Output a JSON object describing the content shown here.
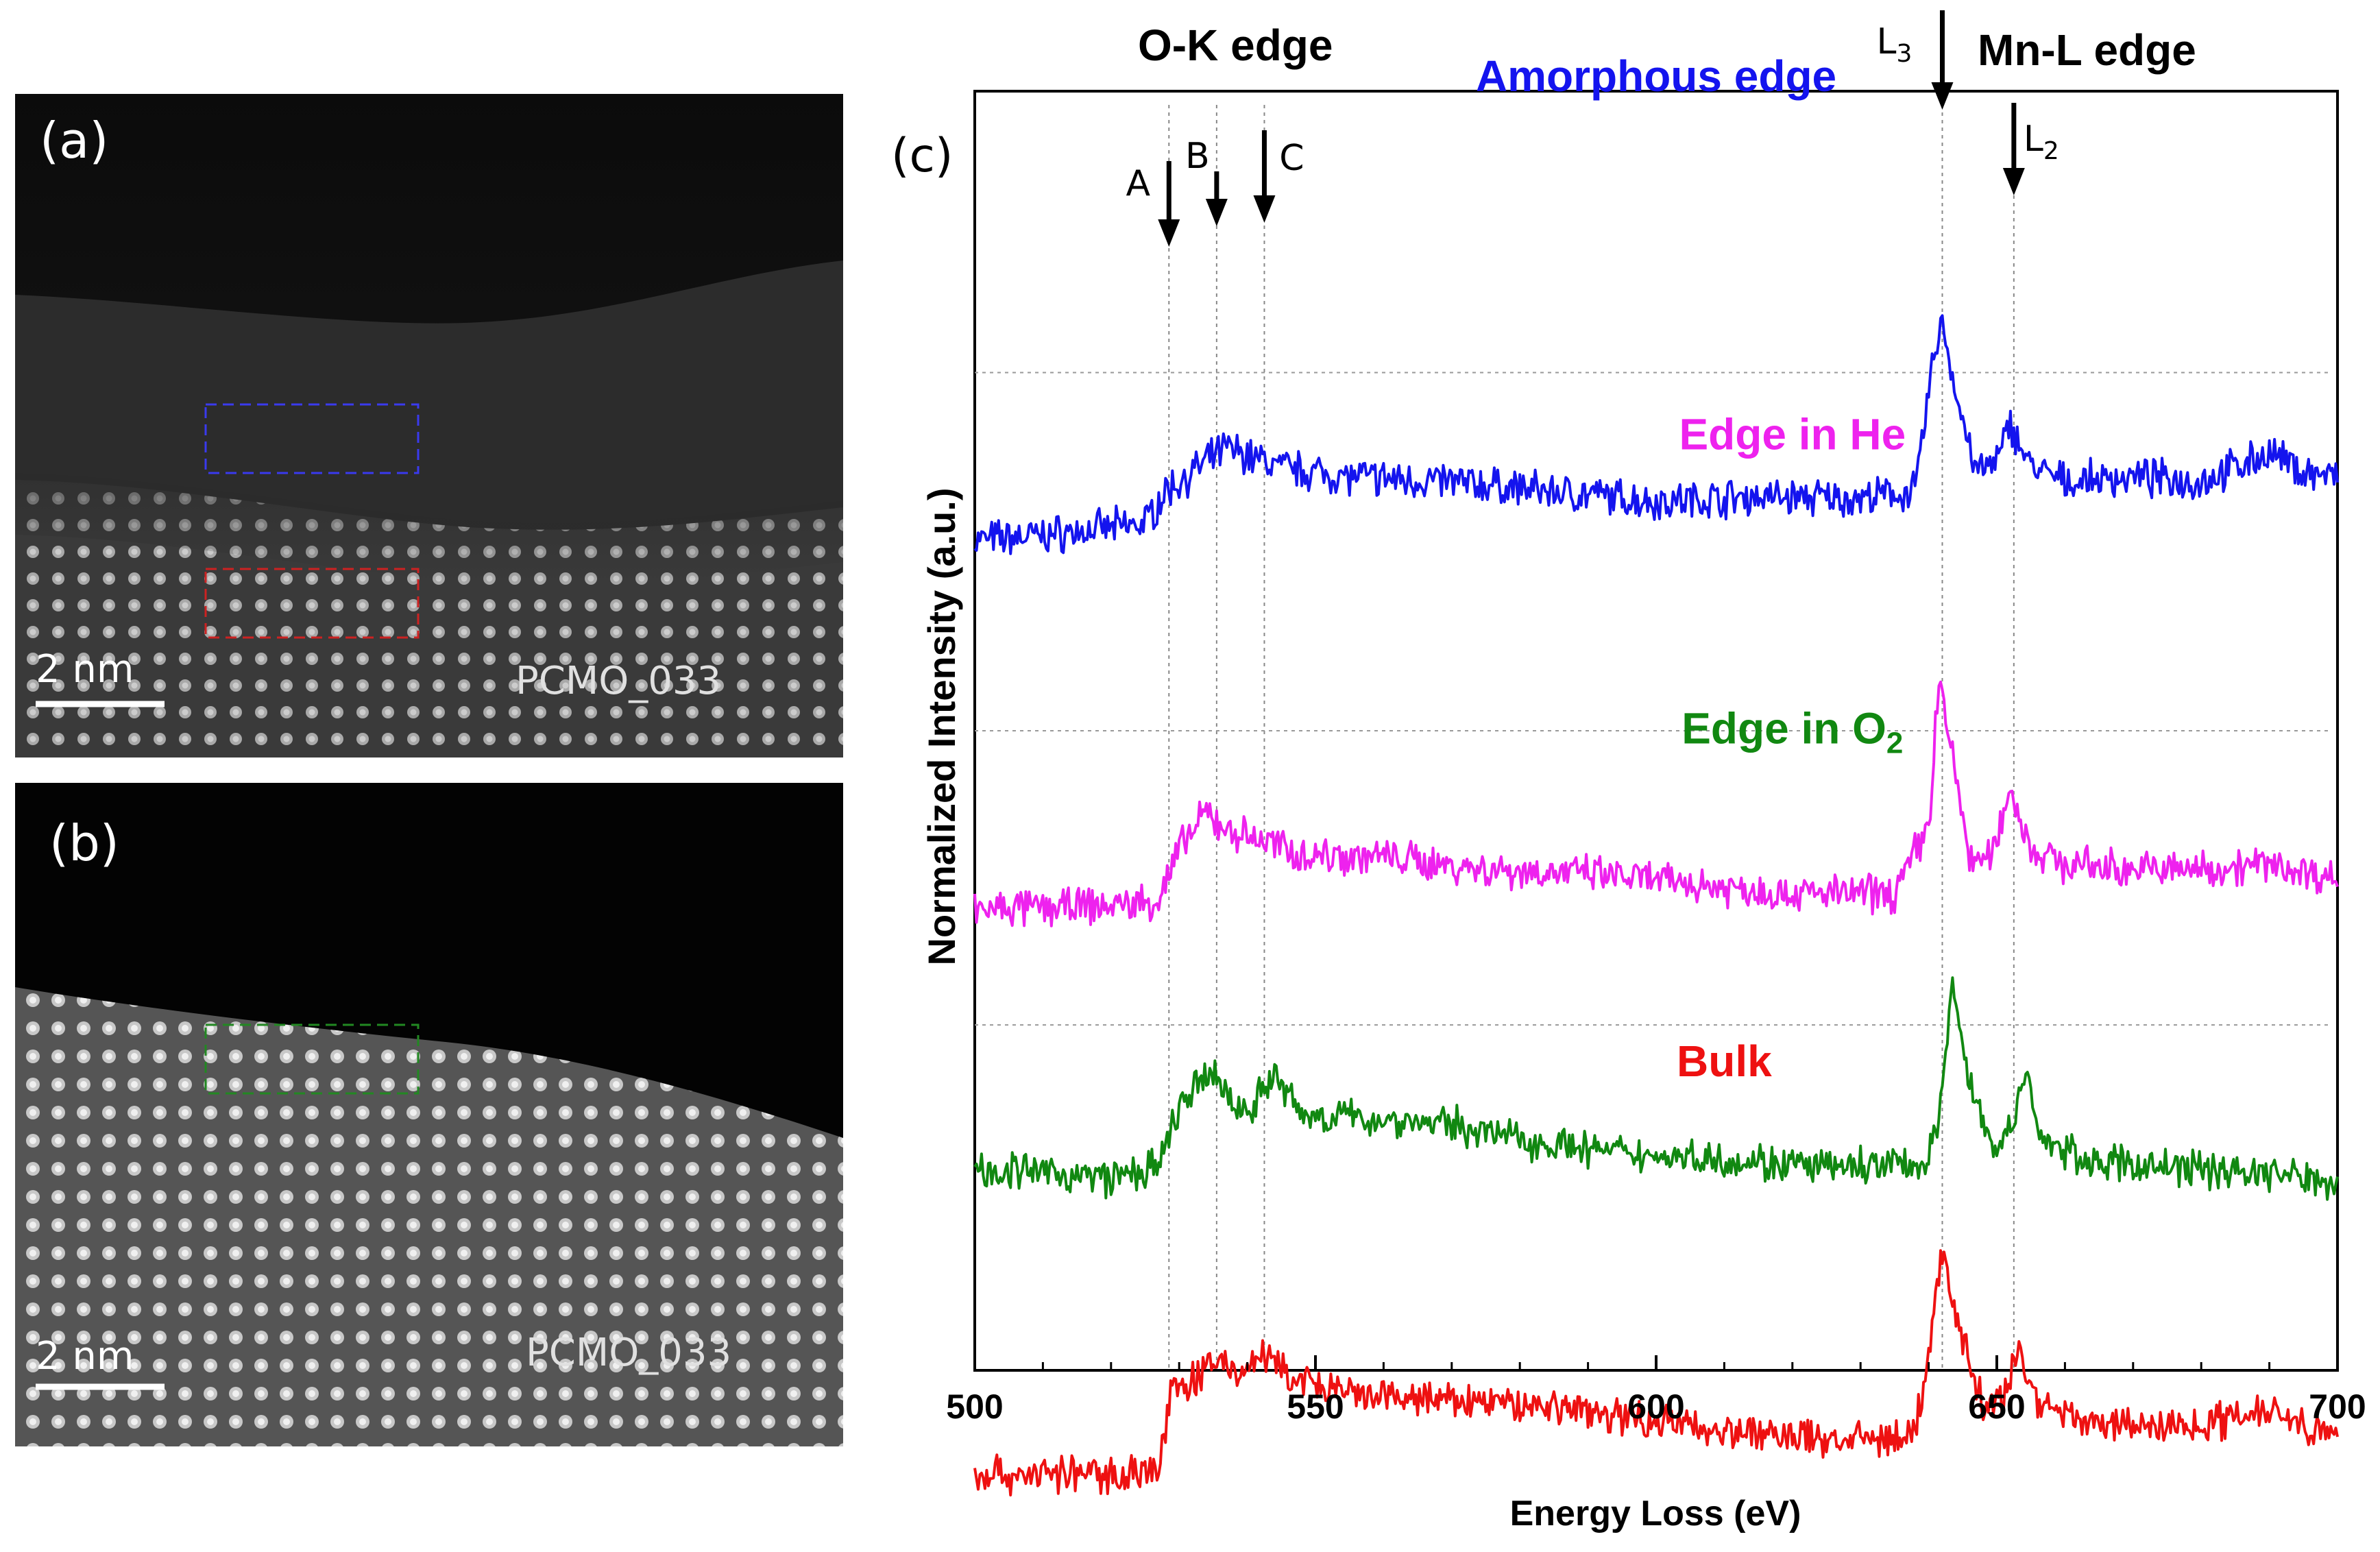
{
  "panel_a": {
    "label": "(a)",
    "scalebar": "2 nm",
    "sample": "PCMO_033"
  },
  "panel_b": {
    "label": "(b)",
    "scalebar": "2 nm",
    "sample": "PCMO_033"
  },
  "colors": {
    "amorphous": "#1414ee",
    "he": "#ee22ee",
    "o2": "#118811",
    "bulk": "#ee1111"
  },
  "chart_data": {
    "type": "line",
    "panel_label": "(c)",
    "xlabel": "Energy Loss (eV)",
    "ylabel": "Normalized Intensity (a.u.)",
    "xlim": [
      500,
      700
    ],
    "xticks": [
      500,
      550,
      600,
      650,
      700
    ],
    "edge_labels": {
      "ok": "O-K edge",
      "mnl": "Mn-L edge"
    },
    "markers": [
      {
        "name": "A",
        "x": 528.5
      },
      {
        "name": "B",
        "x": 535.5
      },
      {
        "name": "C",
        "x": 542.5
      },
      {
        "name": "L",
        "sub": "3",
        "x": 642.0
      },
      {
        "name": "L",
        "sub": "2",
        "x": 652.5
      }
    ],
    "series": [
      {
        "name": "Amorphous edge",
        "sub": "",
        "color": "#1414ee",
        "y_base": 0.82,
        "scale": 0.19,
        "label_x": 600,
        "label_y": 1.0,
        "points": [
          [
            500,
            0.1
          ],
          [
            510,
            0.12
          ],
          [
            520,
            0.15
          ],
          [
            525,
            0.17
          ],
          [
            528,
            0.3
          ],
          [
            533,
            0.4
          ],
          [
            537,
            0.48
          ],
          [
            540,
            0.45
          ],
          [
            545,
            0.4
          ],
          [
            555,
            0.36
          ],
          [
            570,
            0.34
          ],
          [
            585,
            0.3
          ],
          [
            600,
            0.26
          ],
          [
            615,
            0.28
          ],
          [
            630,
            0.27
          ],
          [
            638,
            0.3
          ],
          [
            641,
            0.9
          ],
          [
            642,
            1.0
          ],
          [
            644,
            0.7
          ],
          [
            647,
            0.38
          ],
          [
            650,
            0.42
          ],
          [
            652,
            0.58
          ],
          [
            655,
            0.4
          ],
          [
            660,
            0.34
          ],
          [
            670,
            0.36
          ],
          [
            680,
            0.34
          ],
          [
            690,
            0.46
          ],
          [
            695,
            0.38
          ],
          [
            700,
            0.36
          ]
        ]
      },
      {
        "name": "Edge in He",
        "sub": "",
        "color": "#ee22ee",
        "y_base": 0.54,
        "scale": 0.19,
        "label_x": 620,
        "label_y": 0.72,
        "points": [
          [
            500,
            0.05
          ],
          [
            510,
            0.06
          ],
          [
            520,
            0.07
          ],
          [
            527,
            0.09
          ],
          [
            530,
            0.3
          ],
          [
            534,
            0.45
          ],
          [
            537,
            0.38
          ],
          [
            542,
            0.34
          ],
          [
            548,
            0.28
          ],
          [
            560,
            0.27
          ],
          [
            575,
            0.22
          ],
          [
            590,
            0.2
          ],
          [
            605,
            0.16
          ],
          [
            620,
            0.12
          ],
          [
            635,
            0.12
          ],
          [
            640,
            0.4
          ],
          [
            641.5,
            1.0
          ],
          [
            644,
            0.6
          ],
          [
            646,
            0.26
          ],
          [
            649,
            0.26
          ],
          [
            652,
            0.55
          ],
          [
            655,
            0.3
          ],
          [
            660,
            0.24
          ],
          [
            670,
            0.22
          ],
          [
            680,
            0.22
          ],
          [
            690,
            0.24
          ],
          [
            700,
            0.18
          ]
        ]
      },
      {
        "name": "Edge in O",
        "sub": "2",
        "color": "#118811",
        "y_base": 0.31,
        "scale": 0.19,
        "label_x": 620,
        "label_y": 0.49,
        "points": [
          [
            500,
            0.2
          ],
          [
            510,
            0.18
          ],
          [
            520,
            0.16
          ],
          [
            527,
            0.2
          ],
          [
            530,
            0.45
          ],
          [
            535,
            0.6
          ],
          [
            538,
            0.45
          ],
          [
            540,
            0.44
          ],
          [
            544,
            0.58
          ],
          [
            548,
            0.42
          ],
          [
            560,
            0.4
          ],
          [
            570,
            0.38
          ],
          [
            580,
            0.32
          ],
          [
            595,
            0.26
          ],
          [
            610,
            0.24
          ],
          [
            625,
            0.2
          ],
          [
            640,
            0.22
          ],
          [
            642,
            0.5
          ],
          [
            643.5,
            0.98
          ],
          [
            646,
            0.55
          ],
          [
            649,
            0.3
          ],
          [
            652,
            0.34
          ],
          [
            654,
            0.58
          ],
          [
            657,
            0.3
          ],
          [
            665,
            0.22
          ],
          [
            680,
            0.2
          ],
          [
            690,
            0.18
          ],
          [
            700,
            0.14
          ]
        ]
      },
      {
        "name": "Bulk",
        "sub": "",
        "color": "#ee1111",
        "y_base": 0.09,
        "scale": 0.19,
        "label_x": 610,
        "label_y": 0.23,
        "points": [
          [
            500,
            0.1
          ],
          [
            510,
            0.1
          ],
          [
            520,
            0.1
          ],
          [
            527,
            0.12
          ],
          [
            529,
            0.45
          ],
          [
            533,
            0.5
          ],
          [
            536,
            0.58
          ],
          [
            539,
            0.5
          ],
          [
            542,
            0.6
          ],
          [
            546,
            0.5
          ],
          [
            555,
            0.42
          ],
          [
            570,
            0.4
          ],
          [
            585,
            0.38
          ],
          [
            600,
            0.32
          ],
          [
            615,
            0.26
          ],
          [
            630,
            0.24
          ],
          [
            638,
            0.26
          ],
          [
            640,
            0.6
          ],
          [
            642,
            1.0
          ],
          [
            645,
            0.65
          ],
          [
            648,
            0.38
          ],
          [
            651,
            0.4
          ],
          [
            653,
            0.62
          ],
          [
            656,
            0.4
          ],
          [
            665,
            0.3
          ],
          [
            680,
            0.3
          ],
          [
            690,
            0.38
          ],
          [
            700,
            0.24
          ]
        ]
      }
    ]
  }
}
